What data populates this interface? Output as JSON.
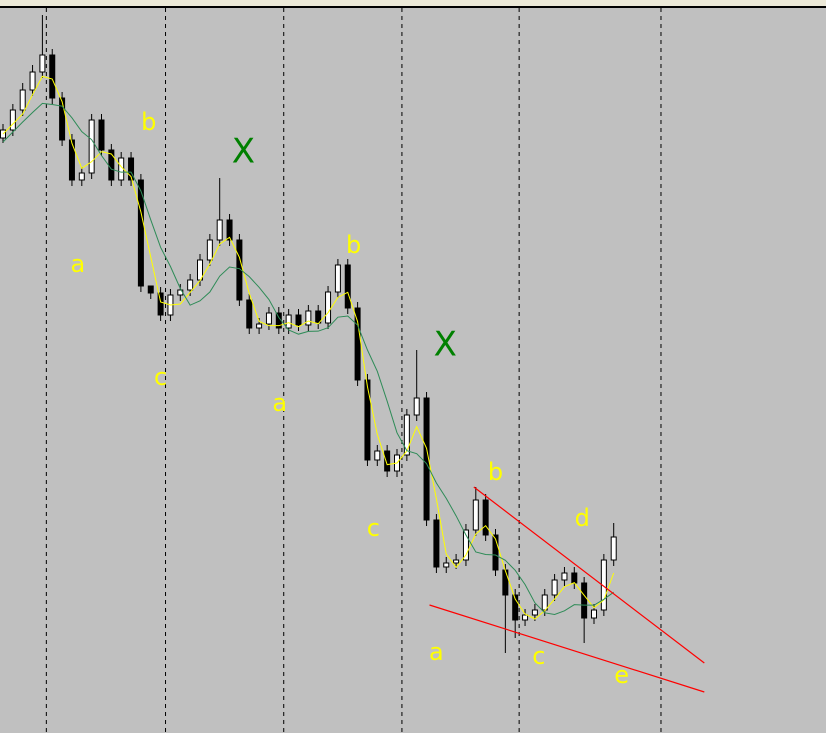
{
  "chart_data": {
    "type": "candlestick",
    "title": "",
    "xlabel": "",
    "ylabel": "",
    "grid": {
      "vertical": true,
      "horizontal": false,
      "style": "dashed"
    },
    "colors": {
      "background": "#c0c0c0",
      "up_body": "#ffffff",
      "down_body": "#000000",
      "wick": "#000000",
      "ma_fast": "#ffff00",
      "ma_slow": "#2e8b57",
      "trendline": "#ff0000",
      "label_wave": "#ffff00",
      "label_x": "#008000",
      "grid": "#000000"
    },
    "vertical_grid_at": [
      4.4,
      16.5,
      28.5,
      40.5,
      52.4,
      66.8
    ],
    "candles": [
      [
        595,
        609,
        590,
        603
      ],
      [
        603,
        629,
        597,
        623
      ],
      [
        623,
        650,
        617,
        643
      ],
      [
        643,
        668,
        637,
        661
      ],
      [
        661,
        718,
        655,
        678
      ],
      [
        678,
        684,
        629,
        635
      ],
      [
        635,
        641,
        587,
        593
      ],
      [
        593,
        599,
        547,
        553
      ],
      [
        553,
        566,
        547,
        560
      ],
      [
        560,
        619,
        554,
        613
      ],
      [
        613,
        619,
        577,
        583
      ],
      [
        583,
        589,
        547,
        553
      ],
      [
        553,
        581,
        547,
        575
      ],
      [
        575,
        581,
        547,
        553
      ],
      [
        553,
        559,
        441,
        447
      ],
      [
        447,
        446,
        434,
        440
      ],
      [
        440,
        446,
        412,
        418
      ],
      [
        418,
        444,
        412,
        438
      ],
      [
        438,
        449,
        432,
        443
      ],
      [
        443,
        459,
        437,
        453
      ],
      [
        453,
        479,
        447,
        473
      ],
      [
        473,
        499,
        467,
        493
      ],
      [
        493,
        555,
        487,
        513
      ],
      [
        513,
        519,
        487,
        493
      ],
      [
        493,
        499,
        427,
        433
      ],
      [
        433,
        439,
        399,
        405
      ],
      [
        405,
        415,
        399,
        409
      ],
      [
        409,
        426,
        403,
        420
      ],
      [
        420,
        426,
        399,
        405
      ],
      [
        405,
        424,
        399,
        418
      ],
      [
        418,
        424,
        402,
        408
      ],
      [
        408,
        428,
        402,
        422
      ],
      [
        422,
        428,
        404,
        410
      ],
      [
        410,
        447,
        404,
        441
      ],
      [
        441,
        474,
        435,
        468
      ],
      [
        468,
        474,
        419,
        425
      ],
      [
        425,
        431,
        347,
        353
      ],
      [
        353,
        359,
        267,
        273
      ],
      [
        273,
        288,
        267,
        282
      ],
      [
        282,
        288,
        256,
        262
      ],
      [
        262,
        284,
        256,
        278
      ],
      [
        278,
        324,
        272,
        318
      ],
      [
        318,
        383,
        312,
        335
      ],
      [
        335,
        341,
        207,
        213
      ],
      [
        213,
        219,
        160,
        166
      ],
      [
        166,
        176,
        160,
        170
      ],
      [
        170,
        179,
        164,
        173
      ],
      [
        173,
        209,
        167,
        203
      ],
      [
        203,
        246,
        197,
        233
      ],
      [
        233,
        239,
        192,
        198
      ],
      [
        198,
        204,
        157,
        163
      ],
      [
        163,
        169,
        80,
        138
      ],
      [
        138,
        144,
        95,
        113
      ],
      [
        113,
        124,
        107,
        118
      ],
      [
        118,
        129,
        112,
        123
      ],
      [
        123,
        144,
        117,
        138
      ],
      [
        138,
        159,
        132,
        153
      ],
      [
        153,
        166,
        147,
        160
      ],
      [
        160,
        166,
        144,
        150
      ],
      [
        150,
        156,
        90,
        115
      ],
      [
        115,
        129,
        109,
        123
      ],
      [
        123,
        179,
        117,
        173
      ],
      [
        173,
        210,
        167,
        196
      ]
    ],
    "moving_averages": [
      {
        "color": "#ffff00"
      },
      {
        "color": "#2e8b57"
      }
    ],
    "trendlines": [
      {
        "from": [
          47.8,
          246
        ],
        "to": [
          71.2,
          70
        ],
        "color": "#ff0000"
      },
      {
        "from": [
          43.3,
          128
        ],
        "to": [
          71.2,
          41
        ],
        "color": "#ff0000"
      }
    ],
    "annotations": [
      {
        "text": "a",
        "at": [
          7.6,
          468
        ],
        "color": "#ffff00"
      },
      {
        "text": "b",
        "at": [
          14.8,
          610
        ],
        "color": "#ffff00"
      },
      {
        "text": "X",
        "at": [
          24.4,
          580
        ],
        "color": "#008000"
      },
      {
        "text": "c",
        "at": [
          16.0,
          355
        ],
        "color": "#ffff00"
      },
      {
        "text": "a",
        "at": [
          28.1,
          329
        ],
        "color": "#ffff00"
      },
      {
        "text": "b",
        "at": [
          35.6,
          487
        ],
        "color": "#ffff00"
      },
      {
        "text": "X",
        "at": [
          44.9,
          387
        ],
        "color": "#008000"
      },
      {
        "text": "c",
        "at": [
          37.6,
          204
        ],
        "color": "#ffff00"
      },
      {
        "text": "b",
        "at": [
          50.0,
          260
        ],
        "color": "#ffff00"
      },
      {
        "text": "d",
        "at": [
          58.8,
          214
        ],
        "color": "#ffff00"
      },
      {
        "text": "a",
        "at": [
          44.0,
          80
        ],
        "color": "#ffff00"
      },
      {
        "text": "c",
        "at": [
          54.4,
          76
        ],
        "color": "#ffff00"
      },
      {
        "text": "e",
        "at": [
          62.8,
          57
        ],
        "color": "#ffff00"
      }
    ]
  }
}
